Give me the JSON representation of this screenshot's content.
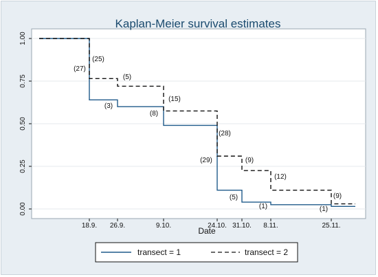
{
  "chart_data": {
    "type": "line",
    "title": "Kaplan-Meier survival estimates",
    "xlabel": "Date",
    "ylabel": "",
    "ylim": [
      0,
      1
    ],
    "x_ticks": [
      "18.9.",
      "26.9.",
      "9.10.",
      "24.10.",
      "31.10.",
      "8.11.",
      "25.11."
    ],
    "y_ticks": [
      "0.00",
      "0.25",
      "0.50",
      "0.75",
      "1.00"
    ],
    "y_tick_values": [
      0,
      0.25,
      0.5,
      0.75,
      1.0
    ],
    "grid": true,
    "legend_position": "bottom",
    "series": [
      {
        "name": "transect = 1",
        "style": "solid",
        "color": "#1f5a8a",
        "steps": [
          {
            "x": "start",
            "y": 1.0
          },
          {
            "x": "18.9.",
            "y": 0.64
          },
          {
            "x": "26.9.",
            "y": 0.6
          },
          {
            "x": "9.10.",
            "y": 0.49
          },
          {
            "x": "24.10.",
            "y": 0.11
          },
          {
            "x": "31.10.",
            "y": 0.04
          },
          {
            "x": "8.11.",
            "y": 0.025
          },
          {
            "x": "25.11.",
            "y": 0.015
          },
          {
            "x": "end",
            "y": 0.015
          }
        ],
        "at_risk": [
          {
            "x": "18.9.",
            "label": "(27)"
          },
          {
            "x": "26.9.",
            "label": "(3)"
          },
          {
            "x": "9.10.",
            "label": "(8)"
          },
          {
            "x": "24.10.",
            "label": "(29)"
          },
          {
            "x": "31.10.",
            "label": "(5)"
          },
          {
            "x": "8.11.",
            "label": "(1)"
          },
          {
            "x": "25.11.",
            "label": "(1)"
          }
        ]
      },
      {
        "name": "transect = 2",
        "style": "dashed",
        "color": "#111111",
        "steps": [
          {
            "x": "start",
            "y": 1.0
          },
          {
            "x": "18.9.",
            "y": 0.765
          },
          {
            "x": "26.9.",
            "y": 0.72
          },
          {
            "x": "9.10.",
            "y": 0.575
          },
          {
            "x": "24.10.",
            "y": 0.31
          },
          {
            "x": "31.10.",
            "y": 0.225
          },
          {
            "x": "8.11.",
            "y": 0.11
          },
          {
            "x": "25.11.",
            "y": 0.03
          },
          {
            "x": "end",
            "y": 0.03
          }
        ],
        "at_risk": [
          {
            "x": "18.9.",
            "label": "(25)"
          },
          {
            "x": "26.9.",
            "label": "(5)"
          },
          {
            "x": "9.10.",
            "label": "(15)"
          },
          {
            "x": "24.10.",
            "label": "(28)"
          },
          {
            "x": "31.10.",
            "label": "(9)"
          },
          {
            "x": "8.11.",
            "label": "(12)"
          },
          {
            "x": "25.11.",
            "label": "(9)"
          }
        ]
      }
    ]
  }
}
